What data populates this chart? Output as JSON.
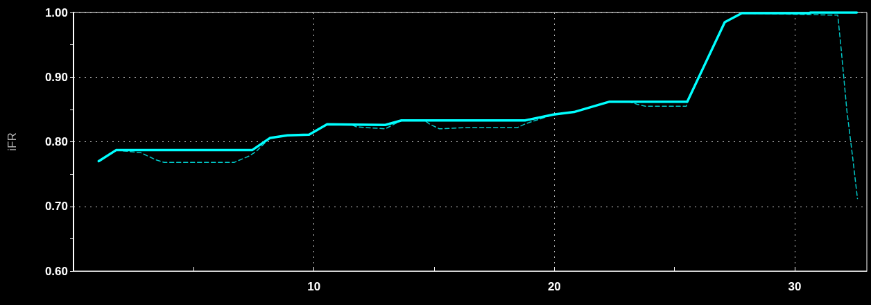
{
  "chart_data": {
    "type": "line",
    "ylabel": "iFR",
    "xlim": [
      0,
      33
    ],
    "xticks": [
      {
        "value": 5,
        "label": null
      },
      10,
      {
        "value": 15,
        "label": null
      },
      20,
      {
        "value": 25,
        "label": null
      },
      30
    ],
    "ylim": [
      0.6,
      1.0
    ],
    "yticks": [
      {
        "value": 0.6,
        "label": "0.60"
      },
      {
        "value": 0.65,
        "label": null
      },
      {
        "value": 0.7,
        "label": "0.70"
      },
      {
        "value": 0.75,
        "label": null
      },
      {
        "value": 0.8,
        "label": "0.80"
      },
      {
        "value": 0.85,
        "label": null
      },
      {
        "value": 0.9,
        "label": "0.90"
      },
      {
        "value": 0.95,
        "label": null
      },
      {
        "value": 1.0,
        "label": "1.00"
      }
    ],
    "grid": true,
    "marker": "none",
    "series": [
      {
        "color": "#00c8c8",
        "line_style": "dashed",
        "x": [
          1.05,
          1.77,
          2.8,
          3.43,
          3.77,
          6.68,
          7.31,
          7.6,
          8.18,
          8.9,
          9.8,
          10.55,
          11.6,
          11.77,
          12.97,
          13.64,
          14.6,
          14.83,
          15.22,
          16.41,
          18.47,
          18.81,
          19.96,
          20.82,
          22.3,
          23.1,
          23.45,
          23.79,
          25.49,
          25.53,
          27.09,
          27.8,
          31.45,
          31.79,
          31.93,
          32.17,
          32.41,
          32.61
        ],
        "values": [
          0.77,
          0.787,
          0.783,
          0.772,
          0.768,
          0.768,
          0.778,
          0.785,
          0.806,
          0.81,
          0.811,
          0.827,
          0.826,
          0.823,
          0.82,
          0.833,
          0.833,
          0.827,
          0.82,
          0.822,
          0.822,
          0.828,
          0.842,
          0.846,
          0.862,
          0.862,
          0.858,
          0.855,
          0.855,
          0.862,
          0.985,
          0.999,
          0.996,
          0.996,
          0.944,
          0.848,
          0.776,
          0.712
        ]
      },
      {
        "color": "#00ffff",
        "line_style": "solid",
        "x": [
          1.05,
          1.77,
          7.43,
          8.18,
          8.9,
          9.8,
          10.55,
          12.97,
          13.64,
          18.78,
          19.96,
          20.82,
          22.3,
          25.53,
          27.09,
          27.8,
          30.6,
          30.65,
          32.58
        ],
        "values": [
          0.77,
          0.787,
          0.787,
          0.806,
          0.81,
          0.811,
          0.827,
          0.826,
          0.833,
          0.833,
          0.842,
          0.846,
          0.862,
          0.862,
          0.985,
          0.999,
          0.999,
          1.0,
          1.0
        ]
      }
    ]
  }
}
